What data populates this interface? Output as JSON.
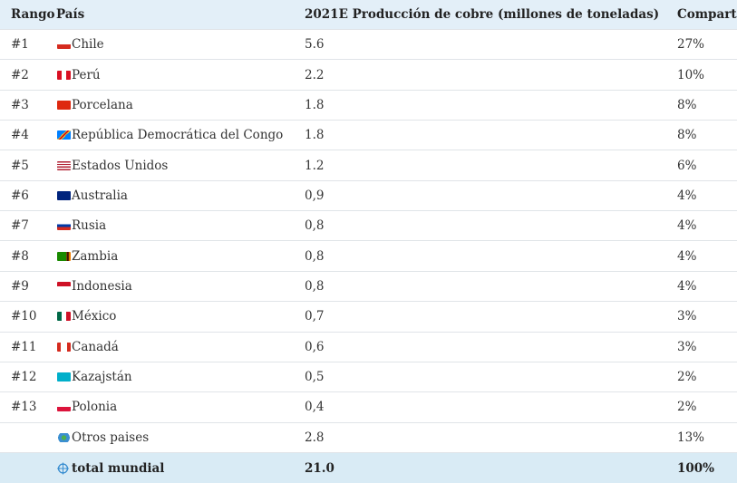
{
  "table": {
    "header": {
      "rank": "Rango",
      "country": "País",
      "production": "2021E Producción de cobre (millones de toneladas)",
      "share": "Comparti"
    },
    "rows": [
      {
        "rank": "#1",
        "country": "Chile",
        "production": "5.6",
        "share": "27%"
      },
      {
        "rank": "#2",
        "country": "Perú",
        "production": "2.2",
        "share": "10%"
      },
      {
        "rank": "#3",
        "country": "Porcelana",
        "production": "1.8",
        "share": "8%"
      },
      {
        "rank": "#4",
        "country": "República Democrática del Congo",
        "production": "1.8",
        "share": "8%"
      },
      {
        "rank": "#5",
        "country": "Estados Unidos",
        "production": "1.2",
        "share": "6%"
      },
      {
        "rank": "#6",
        "country": "Australia",
        "production": "0,9",
        "share": "4%"
      },
      {
        "rank": "#7",
        "country": "Rusia",
        "production": "0,8",
        "share": "4%"
      },
      {
        "rank": "#8",
        "country": "Zambia",
        "production": "0,8",
        "share": "4%"
      },
      {
        "rank": "#9",
        "country": "Indonesia",
        "production": "0,8",
        "share": "4%"
      },
      {
        "rank": "#10",
        "country": "México",
        "production": "0,7",
        "share": "3%"
      },
      {
        "rank": "#11",
        "country": "Canadá",
        "production": "0,6",
        "share": "3%"
      },
      {
        "rank": "#12",
        "country": "Kazajstán",
        "production": "0,5",
        "share": "2%"
      },
      {
        "rank": "#13",
        "country": "Polonia",
        "production": "0,4",
        "share": "2%"
      },
      {
        "country": "Otros paises",
        "production": "2.8",
        "share": "13%"
      }
    ],
    "total": {
      "country": "total mundial",
      "production": "21.0",
      "share": "100%"
    }
  }
}
